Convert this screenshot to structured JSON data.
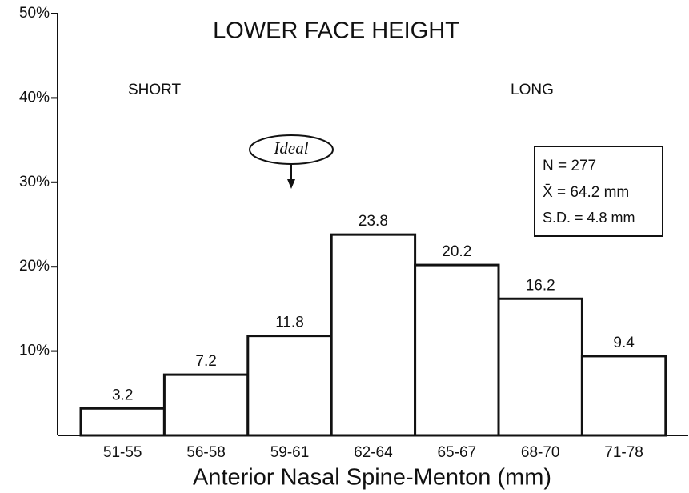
{
  "chart_data": {
    "type": "bar",
    "title": "LOWER FACE HEIGHT",
    "x_label": "Anterior Nasal Spine-Menton (mm)",
    "categories": [
      "51-55",
      "56-58",
      "59-61",
      "62-64",
      "65-67",
      "68-70",
      "71-78"
    ],
    "values": [
      3.2,
      7.2,
      11.8,
      23.8,
      20.2,
      16.2,
      9.4
    ],
    "color": "#ffffff",
    "ylim": [
      0,
      50
    ],
    "yticks": [
      {
        "value": 10,
        "label": "10%"
      },
      {
        "value": 20,
        "label": "20%"
      },
      {
        "value": 30,
        "label": "30%"
      },
      {
        "value": 40,
        "label": "40%"
      },
      {
        "value": 50,
        "label": "50%"
      }
    ],
    "annotations": [
      "SHORT",
      "LONG",
      "Ideal",
      "N = 277",
      "X̄ = 64.2 mm",
      "S.D. = 4.8 mm"
    ]
  }
}
